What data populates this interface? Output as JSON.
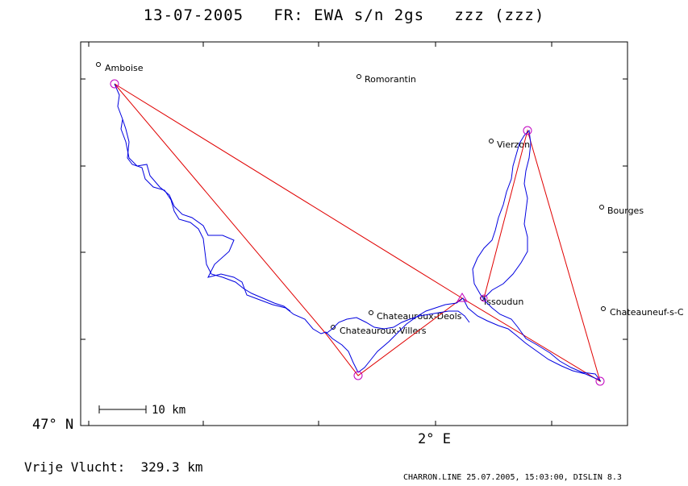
{
  "title": "13-07-2005   FR: EWA s/n 2gs   zzz (zzz)",
  "axes": {
    "lat_label": "47° N",
    "lon_label": "2° E"
  },
  "scale_bar": {
    "label": "10 km"
  },
  "towns": [
    {
      "name": "Amboise"
    },
    {
      "name": "Romorantin"
    },
    {
      "name": "Vierzon"
    },
    {
      "name": "Bourges"
    },
    {
      "name": "Chateauroux-Deols"
    },
    {
      "name": "Chateauroux-Villers"
    },
    {
      "name": "Issoudun"
    },
    {
      "name": "Chateauneuf-s-C"
    }
  ],
  "distance_text": "Vrije Vlucht:  329.3 km",
  "footer_text": "CHARRON.LINE 25.07.2005, 15:03:00, DISLIN 8.3",
  "colors": {
    "task": "#e00000",
    "track": "#0000e0",
    "turnpoint": "#c000c0",
    "frame": "#000000"
  }
}
